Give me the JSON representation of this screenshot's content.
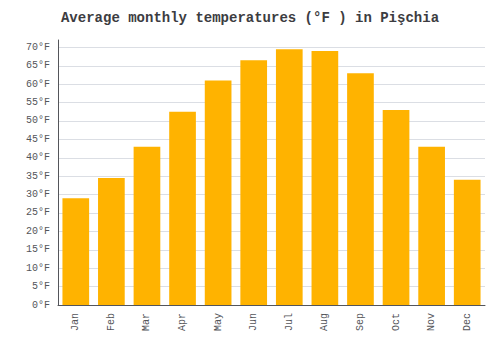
{
  "chart_data": {
    "type": "bar",
    "title": "Average monthly temperatures (°F ) in Pişchia",
    "categories": [
      "Jan",
      "Feb",
      "Mar",
      "Apr",
      "May",
      "Jun",
      "Jul",
      "Aug",
      "Sep",
      "Oct",
      "Nov",
      "Dec"
    ],
    "values": [
      29,
      34.5,
      43,
      52.5,
      61,
      66.5,
      69.5,
      69,
      63,
      53,
      43,
      34
    ],
    "color": "#FFB300",
    "ylim": [
      0,
      72
    ],
    "yticks": [
      {
        "value": 0,
        "label": "0°F"
      },
      {
        "value": 5,
        "label": "5°F"
      },
      {
        "value": 10,
        "label": "10°F"
      },
      {
        "value": 15,
        "label": "15°F"
      },
      {
        "value": 20,
        "label": "20°F"
      },
      {
        "value": 25,
        "label": "25°F"
      },
      {
        "value": 30,
        "label": "30°F"
      },
      {
        "value": 35,
        "label": "35°F"
      },
      {
        "value": 40,
        "label": "40°F"
      },
      {
        "value": 45,
        "label": "45°F"
      },
      {
        "value": 50,
        "label": "50°F"
      },
      {
        "value": 55,
        "label": "55°F"
      },
      {
        "value": 60,
        "label": "60°F"
      },
      {
        "value": 65,
        "label": "65°F"
      },
      {
        "value": 70,
        "label": "70°F"
      }
    ],
    "grid": true
  }
}
